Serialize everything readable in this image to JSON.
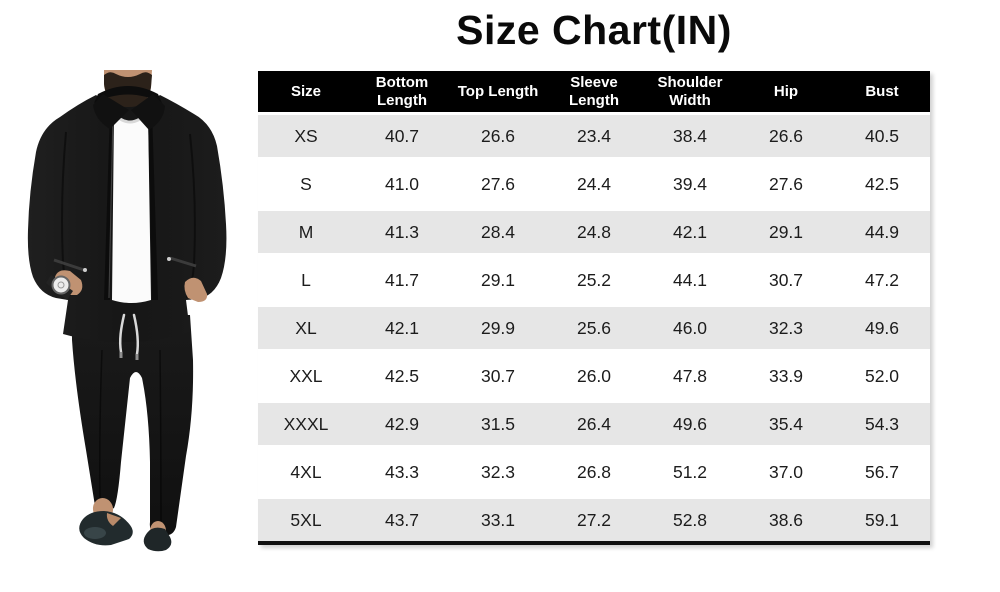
{
  "title": "Size Chart(IN)",
  "figure": {
    "description": "Man wearing a black zip-up jacket over a white t-shirt, black drawstring trousers and dark loafers"
  },
  "chart_data": {
    "type": "table",
    "title": "Size Chart(IN)",
    "unit": "IN",
    "columns": [
      "Size",
      "Bottom Length",
      "Top Length",
      "Sleeve Length",
      "Shoulder Width",
      "Hip",
      "Bust"
    ],
    "rows": [
      [
        "XS",
        "40.7",
        "26.6",
        "23.4",
        "38.4",
        "26.6",
        "40.5"
      ],
      [
        "S",
        "41.0",
        "27.6",
        "24.4",
        "39.4",
        "27.6",
        "42.5"
      ],
      [
        "M",
        "41.3",
        "28.4",
        "24.8",
        "42.1",
        "29.1",
        "44.9"
      ],
      [
        "L",
        "41.7",
        "29.1",
        "25.2",
        "44.1",
        "30.7",
        "47.2"
      ],
      [
        "XL",
        "42.1",
        "29.9",
        "25.6",
        "46.0",
        "32.3",
        "49.6"
      ],
      [
        "XXL",
        "42.5",
        "30.7",
        "26.0",
        "47.8",
        "33.9",
        "52.0"
      ],
      [
        "XXXL",
        "42.9",
        "31.5",
        "26.4",
        "49.6",
        "35.4",
        "54.3"
      ],
      [
        "4XL",
        "43.3",
        "32.3",
        "26.8",
        "51.2",
        "37.0",
        "56.7"
      ],
      [
        "5XL",
        "43.7",
        "33.1",
        "27.2",
        "52.8",
        "38.6",
        "59.1"
      ]
    ],
    "layout": {
      "striped_rows": true,
      "stripe_pattern": "odd-rows-gray",
      "legend_position": "none",
      "grid": false
    }
  },
  "colors": {
    "page_bg": "#ffffff",
    "header_bg": "#000000",
    "header_text": "#ffffff",
    "stripe_row_bg": "#e6e6e6",
    "plain_row_bg": "#ffffff",
    "cell_text": "#1c1c1c",
    "title_text": "#0a0a0a",
    "bottom_rule": "#111111"
  }
}
